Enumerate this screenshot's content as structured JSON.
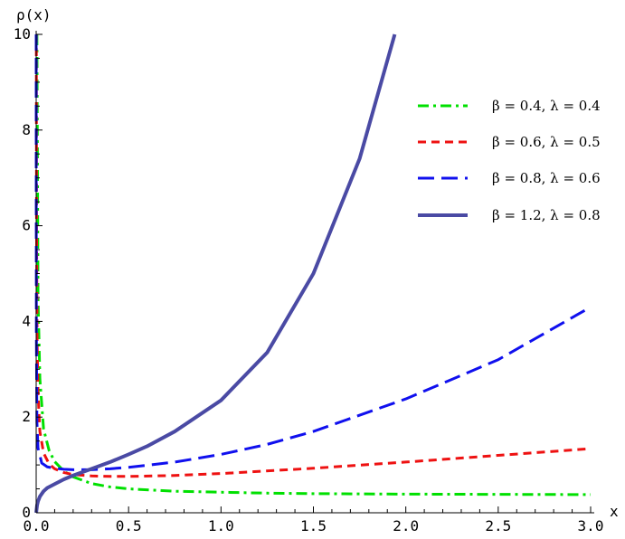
{
  "chart_data": {
    "type": "line",
    "xlabel": "x",
    "ylabel": "ρ(x)",
    "xlim": [
      0,
      3
    ],
    "ylim": [
      0,
      10
    ],
    "x_ticks": [
      "0.0",
      "0.5",
      "1.0",
      "1.5",
      "2.0",
      "2.5",
      "3.0"
    ],
    "x_tick_values": [
      0,
      0.5,
      1.0,
      1.5,
      2.0,
      2.5,
      3.0
    ],
    "y_ticks": [
      "0",
      "2",
      "4",
      "6",
      "8",
      "10"
    ],
    "y_tick_values": [
      0,
      2,
      4,
      6,
      8,
      10
    ],
    "grid": false,
    "legend_position": "top-right",
    "series": [
      {
        "name": "β = 0.4, λ = 0.4",
        "color": "#00e000",
        "dash": "dashdot",
        "x": [
          0.004,
          0.01,
          0.02,
          0.04,
          0.07,
          0.1,
          0.15,
          0.2,
          0.3,
          0.4,
          0.5,
          0.75,
          1.0,
          1.25,
          1.5,
          2.0,
          2.5,
          3.0
        ],
        "y": [
          10.0,
          4.5,
          2.8,
          1.75,
          1.3,
          1.07,
          0.87,
          0.75,
          0.61,
          0.54,
          0.5,
          0.45,
          0.43,
          0.41,
          0.4,
          0.39,
          0.385,
          0.38
        ]
      },
      {
        "name": "β = 0.6, λ = 0.5",
        "color": "#ee1111",
        "dash": "dashed-short",
        "x": [
          0.0008,
          0.002,
          0.005,
          0.01,
          0.02,
          0.04,
          0.07,
          0.1,
          0.15,
          0.2,
          0.3,
          0.4,
          0.5,
          0.75,
          1.0,
          1.5,
          2.0,
          2.5,
          3.0
        ],
        "y": [
          10.0,
          6.0,
          3.6,
          2.5,
          1.7,
          1.25,
          1.02,
          0.92,
          0.84,
          0.8,
          0.77,
          0.76,
          0.76,
          0.78,
          0.82,
          0.93,
          1.06,
          1.2,
          1.34
        ]
      },
      {
        "name": "β = 0.8, λ = 0.6",
        "color": "#1010ee",
        "dash": "dashed-long",
        "x": [
          5e-05,
          0.0003,
          0.001,
          0.004,
          0.01,
          0.03,
          0.06,
          0.1,
          0.15,
          0.2,
          0.3,
          0.4,
          0.5,
          0.75,
          1.0,
          1.25,
          1.5,
          2.0,
          2.5,
          3.0
        ],
        "y": [
          10.0,
          6.5,
          3.8,
          1.9,
          1.35,
          1.04,
          0.96,
          0.93,
          0.91,
          0.9,
          0.9,
          0.92,
          0.95,
          1.06,
          1.22,
          1.43,
          1.7,
          2.38,
          3.2,
          4.3
        ]
      },
      {
        "name": "β = 1.2, λ = 0.8",
        "color": "#4a4aa4",
        "dash": "solid",
        "x": [
          0.0,
          0.005,
          0.01,
          0.02,
          0.04,
          0.06,
          0.1,
          0.15,
          0.2,
          0.3,
          0.4,
          0.5,
          0.6,
          0.75,
          1.0,
          1.25,
          1.5,
          1.75,
          1.94
        ],
        "y": [
          0.0,
          0.16,
          0.24,
          0.34,
          0.45,
          0.52,
          0.6,
          0.7,
          0.78,
          0.92,
          1.06,
          1.22,
          1.39,
          1.7,
          2.35,
          3.35,
          5.0,
          7.4,
          10.0
        ]
      }
    ]
  }
}
